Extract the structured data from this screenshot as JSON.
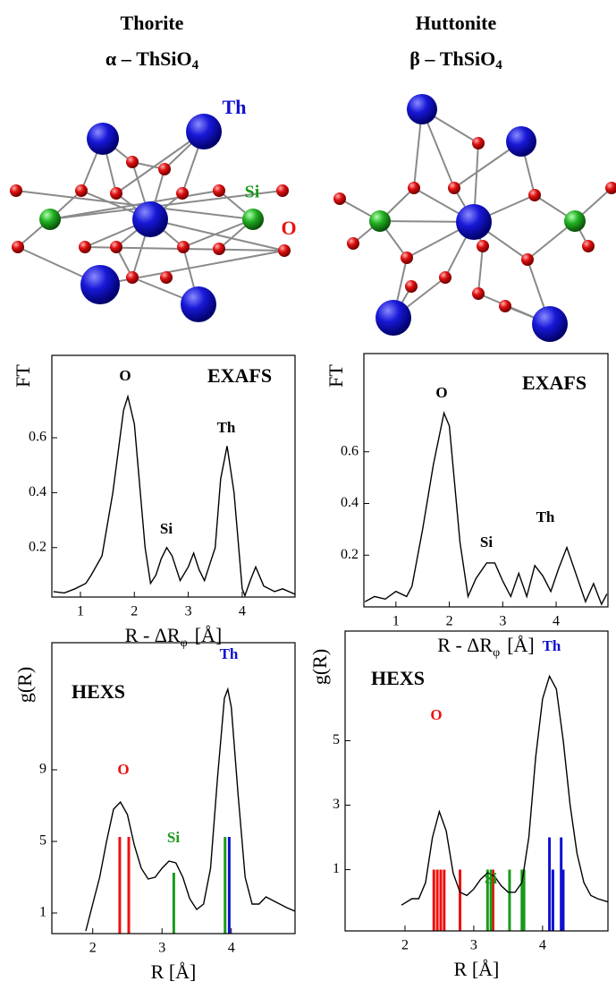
{
  "header": {
    "left": {
      "name": "Thorite",
      "formula": "α – ThSiO",
      "sub": "4"
    },
    "right": {
      "name": "Huttonite",
      "formula": "β – ThSiO",
      "sub": "4"
    }
  },
  "structure_labels": {
    "th": "Th",
    "si": "Si",
    "o": "O",
    "th_color": "#1010d0",
    "si_color": "#1a9a1a",
    "o_color": "#ee1010"
  },
  "chart_data": [
    {
      "type": "line",
      "ylabel": "FT",
      "xlabel": "R - ΔR",
      "xlabel_sub": "φ",
      "xlabel_end": "[Å]",
      "color": "#000000",
      "x": [
        0.5,
        0.7,
        0.9,
        1.1,
        1.2,
        1.4,
        1.6,
        1.8,
        1.88,
        2.0,
        2.2,
        2.3,
        2.4,
        2.5,
        2.6,
        2.7,
        2.85,
        3.0,
        3.1,
        3.2,
        3.3,
        3.4,
        3.5,
        3.6,
        3.72,
        3.85,
        4.0,
        4.05,
        4.15,
        4.25,
        4.4,
        4.6,
        4.75,
        4.98
      ],
      "values": [
        0.04,
        0.035,
        0.05,
        0.07,
        0.1,
        0.17,
        0.4,
        0.7,
        0.75,
        0.65,
        0.2,
        0.07,
        0.1,
        0.16,
        0.2,
        0.17,
        0.08,
        0.13,
        0.18,
        0.12,
        0.08,
        0.14,
        0.2,
        0.45,
        0.57,
        0.4,
        0.05,
        0.025,
        0.08,
        0.13,
        0.06,
        0.04,
        0.05,
        0.03
      ],
      "xlim": [
        0.47,
        4.98
      ],
      "ylim": [
        0.02,
        0.9
      ],
      "xticks": [
        1,
        2,
        3,
        4
      ],
      "yticks": [
        0.2,
        0.4,
        0.6
      ],
      "annotations": [
        {
          "text": "EXAFS",
          "color": "#000000"
        },
        {
          "text": "O",
          "color": "#000000"
        },
        {
          "text": "Si",
          "color": "#000000"
        },
        {
          "text": "Th",
          "color": "#000000"
        }
      ]
    },
    {
      "type": "line",
      "ylabel": "FT",
      "xlabel": "R - ΔR",
      "xlabel_sub": "φ",
      "xlabel_end": "[Å]",
      "color": "#000000",
      "x": [
        0.42,
        0.6,
        0.8,
        1.0,
        1.2,
        1.3,
        1.5,
        1.7,
        1.9,
        2.0,
        2.2,
        2.35,
        2.5,
        2.7,
        2.85,
        3.0,
        3.15,
        3.3,
        3.45,
        3.6,
        3.75,
        3.9,
        4.05,
        4.2,
        4.35,
        4.55,
        4.7,
        4.85,
        4.95
      ],
      "values": [
        0.02,
        0.04,
        0.03,
        0.06,
        0.04,
        0.08,
        0.3,
        0.55,
        0.75,
        0.7,
        0.25,
        0.04,
        0.11,
        0.17,
        0.17,
        0.1,
        0.04,
        0.13,
        0.04,
        0.16,
        0.12,
        0.06,
        0.15,
        0.23,
        0.14,
        0.02,
        0.09,
        0.01,
        0.05
      ],
      "xlim": [
        0.4,
        4.97
      ],
      "ylim": [
        0,
        0.98
      ],
      "xticks": [
        1,
        2,
        3,
        4
      ],
      "yticks": [
        0.2,
        0.4,
        0.6
      ],
      "annotations": [
        {
          "text": "EXAFS",
          "color": "#000000"
        },
        {
          "text": "O",
          "color": "#000000"
        },
        {
          "text": "Si",
          "color": "#000000"
        },
        {
          "text": "Th",
          "color": "#000000"
        }
      ]
    },
    {
      "type": "line",
      "ylabel": "g(R)",
      "xlabel": "R [Å]",
      "color": "#000000",
      "x": [
        1.9,
        2.0,
        2.1,
        2.2,
        2.3,
        2.4,
        2.5,
        2.6,
        2.7,
        2.8,
        2.9,
        3.0,
        3.1,
        3.2,
        3.3,
        3.4,
        3.5,
        3.6,
        3.7,
        3.8,
        3.9,
        3.95,
        4.0,
        4.1,
        4.2,
        4.3,
        4.4,
        4.5,
        4.6,
        4.8,
        4.92
      ],
      "values": [
        0,
        1.5,
        3.0,
        5.0,
        6.8,
        7.2,
        6.5,
        4.8,
        3.5,
        2.9,
        3.0,
        3.5,
        3.9,
        3.8,
        3.0,
        1.8,
        1.2,
        1.5,
        3.5,
        8.5,
        13.0,
        13.5,
        12.5,
        7.5,
        3.0,
        1.5,
        1.5,
        1.9,
        1.7,
        1.3,
        1.1
      ],
      "xlim": [
        1.41,
        4.92
      ],
      "ylim": [
        -0.15,
        16.1
      ],
      "xticks": [
        2,
        3,
        4
      ],
      "yticks": [
        1,
        5,
        9
      ],
      "sticks": [
        {
          "color": "#ee1010",
          "x": [
            2.39,
            2.52
          ],
          "values": [
            5.25,
            5.25
          ]
        },
        {
          "color": "#1a9a1a",
          "x": [
            3.17,
            3.91
          ],
          "values": [
            3.25,
            5.25
          ]
        },
        {
          "color": "#1010d0",
          "x": [
            3.97
          ],
          "values": [
            5.25
          ]
        }
      ],
      "annotations": [
        {
          "text": "HEXS",
          "color": "#000000"
        },
        {
          "text": "O",
          "color": "#ee1010"
        },
        {
          "text": "Si",
          "color": "#1a9a1a"
        },
        {
          "text": "Th",
          "color": "#1010d0"
        }
      ]
    },
    {
      "type": "line",
      "ylabel": "g(R)",
      "xlabel": "R [Å]",
      "color": "#000000",
      "x": [
        1.95,
        2.1,
        2.2,
        2.3,
        2.4,
        2.5,
        2.6,
        2.7,
        2.8,
        2.9,
        3.0,
        3.1,
        3.2,
        3.3,
        3.4,
        3.5,
        3.6,
        3.7,
        3.8,
        3.9,
        4.0,
        4.1,
        4.2,
        4.3,
        4.4,
        4.5,
        4.6,
        4.7,
        4.8,
        4.95
      ],
      "values": [
        -0.1,
        0.1,
        0.1,
        0.6,
        2.0,
        2.8,
        2.2,
        0.9,
        0.3,
        0.2,
        0.4,
        0.7,
        0.9,
        0.8,
        0.5,
        0.3,
        0.3,
        0.6,
        2.0,
        4.5,
        6.3,
        7.0,
        6.6,
        5.0,
        3.0,
        1.5,
        0.6,
        0.2,
        0.1,
        0.0
      ],
      "xlim": [
        1.13,
        4.95
      ],
      "ylim": [
        -0.9,
        8.4
      ],
      "xticks": [
        2,
        3,
        4
      ],
      "yticks": [
        1,
        3,
        5
      ],
      "sticks": [
        {
          "color": "#ee1010",
          "x": [
            2.42,
            2.47,
            2.52,
            2.57,
            2.8,
            3.28
          ],
          "values": [
            1,
            1,
            1,
            1,
            1,
            1
          ]
        },
        {
          "color": "#1a9a1a",
          "x": [
            3.2,
            3.25,
            3.52,
            3.7,
            3.73
          ],
          "values": [
            1,
            1,
            1,
            1,
            1
          ]
        },
        {
          "color": "#1010d0",
          "x": [
            4.1,
            4.15,
            4.27,
            4.3
          ],
          "values": [
            2,
            1,
            2,
            1
          ]
        }
      ],
      "annotations": [
        {
          "text": "HEXS",
          "color": "#000000"
        },
        {
          "text": "O",
          "color": "#ee1010"
        },
        {
          "text": "Si",
          "color": "#1a9a1a"
        },
        {
          "text": "Th",
          "color": "#1010d0"
        }
      ]
    }
  ]
}
